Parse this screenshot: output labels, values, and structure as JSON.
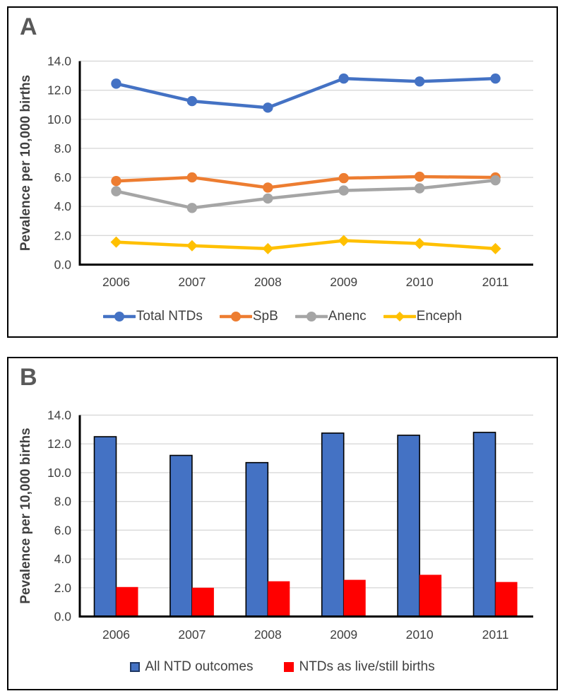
{
  "panels": [
    {
      "label": "A"
    },
    {
      "label": "B"
    }
  ],
  "colors": {
    "blue": "#4472C4",
    "orange": "#ED7D31",
    "gray": "#A5A5A5",
    "yellow": "#FFC000",
    "red": "#FF0000",
    "axis": "#000000",
    "gridline": "#D9D9D9",
    "tick_text": "#404040",
    "panel_label_text": "#595959",
    "bar_outline": "#000000",
    "legend_blue_square_border": "#1F3864"
  },
  "chart_data": [
    {
      "type": "line",
      "title": "",
      "xlabel": "",
      "ylabel": "Pevalence per 10,000 births",
      "categories": [
        "2006",
        "2007",
        "2008",
        "2009",
        "2010",
        "2011"
      ],
      "ylim": [
        0,
        14
      ],
      "ytick_step": 2,
      "ytick_labels": [
        "0.0",
        "2.0",
        "4.0",
        "6.0",
        "8.0",
        "10.0",
        "12.0",
        "14.0"
      ],
      "grid": true,
      "legend_position": "bottom",
      "series": [
        {
          "name": "Total NTDs",
          "color": "#4472C4",
          "marker": "circle",
          "values": [
            12.45,
            11.25,
            10.8,
            12.8,
            12.6,
            12.8
          ]
        },
        {
          "name": "SpB",
          "color": "#ED7D31",
          "marker": "circle",
          "values": [
            5.75,
            6.0,
            5.3,
            5.95,
            6.05,
            6.0
          ]
        },
        {
          "name": "Anenc",
          "color": "#A5A5A5",
          "marker": "circle",
          "values": [
            5.05,
            3.9,
            4.55,
            5.1,
            5.25,
            5.8
          ]
        },
        {
          "name": "Enceph",
          "color": "#FFC000",
          "marker": "diamond",
          "values": [
            1.55,
            1.3,
            1.1,
            1.65,
            1.45,
            1.1
          ]
        }
      ]
    },
    {
      "type": "bar",
      "title": "",
      "xlabel": "",
      "ylabel": "Pevalence per 10,000 births",
      "categories": [
        "2006",
        "2007",
        "2008",
        "2009",
        "2010",
        "2011"
      ],
      "ylim": [
        0,
        14
      ],
      "ytick_step": 2,
      "ytick_labels": [
        "0.0",
        "2.0",
        "4.0",
        "6.0",
        "8.0",
        "10.0",
        "12.0",
        "14.0"
      ],
      "grid": true,
      "legend_position": "bottom",
      "series": [
        {
          "name": "All NTD outcomes",
          "color": "#4472C4",
          "outline": "#000000",
          "values": [
            12.5,
            11.2,
            10.7,
            12.75,
            12.6,
            12.8
          ]
        },
        {
          "name": "NTDs as live/still births",
          "color": "#FF0000",
          "outline": "none",
          "values": [
            2.05,
            2.0,
            2.45,
            2.55,
            2.9,
            2.4
          ]
        }
      ]
    }
  ]
}
